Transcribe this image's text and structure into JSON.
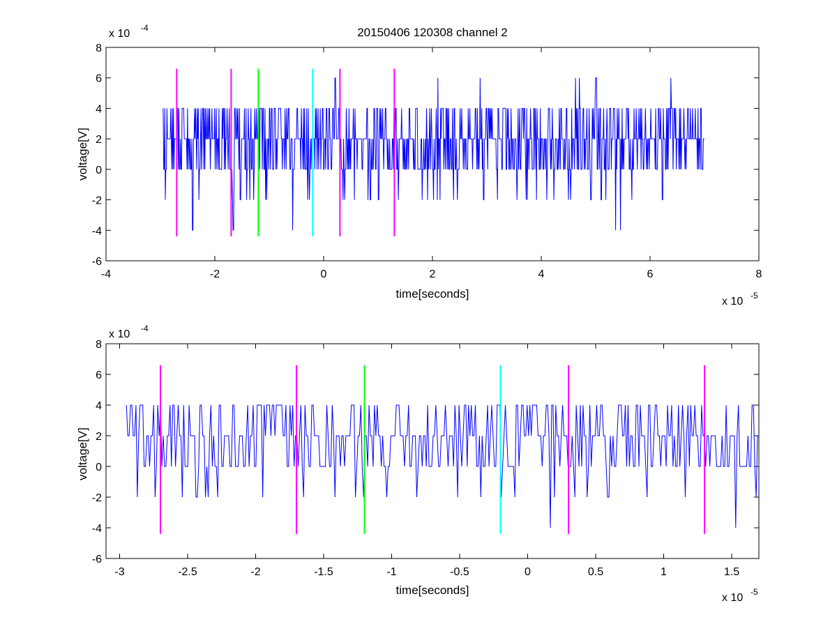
{
  "chart_data": [
    {
      "type": "line",
      "title": "20150406 120308 channel 2",
      "xlabel": "time[seconds]",
      "ylabel": "voltage[V]",
      "x_exponent_label": "x 10",
      "x_exponent": "-5",
      "y_exponent_label": "x 10",
      "y_exponent": "-4",
      "xlim": [
        -4,
        8
      ],
      "ylim": [
        -6,
        8
      ],
      "x_ticks": [
        "-4",
        "-2",
        "0",
        "2",
        "4",
        "6",
        "8"
      ],
      "y_ticks": [
        "-6",
        "-4",
        "-2",
        "0",
        "2",
        "4",
        "6",
        "8"
      ],
      "grid": false,
      "signal": {
        "color": "#0000ff",
        "x_start": -2.95,
        "x_end": 7.0,
        "samples": 1000,
        "levels": [
          -4,
          -2,
          0,
          2,
          4,
          6
        ],
        "baseline": 2
      },
      "markers": [
        {
          "x": -2.7,
          "color": "#ff00ff",
          "y_range": [
            -4.4,
            6.6
          ]
        },
        {
          "x": -1.7,
          "color": "#ff00ff",
          "y_range": [
            -4.4,
            6.6
          ]
        },
        {
          "x": -1.2,
          "color": "#00ff00",
          "y_range": [
            -4.4,
            6.6
          ]
        },
        {
          "x": -0.2,
          "color": "#00ffff",
          "y_range": [
            -4.4,
            6.6
          ]
        },
        {
          "x": 0.3,
          "color": "#ff00ff",
          "y_range": [
            -4.4,
            6.6
          ]
        },
        {
          "x": 1.3,
          "color": "#ff00ff",
          "y_range": [
            -4.4,
            6.6
          ]
        }
      ]
    },
    {
      "type": "line",
      "title": "",
      "xlabel": "time[seconds]",
      "ylabel": "voltage[V]",
      "x_exponent_label": "x 10",
      "x_exponent": "-5",
      "y_exponent_label": "x 10",
      "y_exponent": "-4",
      "xlim": [
        -3.1,
        1.7
      ],
      "ylim": [
        -6,
        8
      ],
      "x_ticks": [
        "-3",
        "-2.5",
        "-2",
        "-1.5",
        "-1",
        "-0.5",
        "0",
        "0.5",
        "1",
        "1.5"
      ],
      "y_ticks": [
        "-6",
        "-4",
        "-2",
        "0",
        "2",
        "4",
        "6",
        "8"
      ],
      "grid": false,
      "signal": {
        "color": "#0000ff",
        "x_start": -2.95,
        "x_end": 1.7,
        "samples": 465,
        "levels": [
          -4,
          -2,
          0,
          2,
          4
        ],
        "baseline": 2
      },
      "markers": [
        {
          "x": -2.7,
          "color": "#ff00ff",
          "y_range": [
            -4.4,
            6.6
          ]
        },
        {
          "x": -1.7,
          "color": "#ff00ff",
          "y_range": [
            -4.4,
            6.6
          ]
        },
        {
          "x": -1.2,
          "color": "#00ff00",
          "y_range": [
            -4.4,
            6.6
          ]
        },
        {
          "x": -0.2,
          "color": "#00ffff",
          "y_range": [
            -4.4,
            6.6
          ]
        },
        {
          "x": 0.3,
          "color": "#ff00ff",
          "y_range": [
            -4.4,
            6.6
          ]
        },
        {
          "x": 1.3,
          "color": "#ff00ff",
          "y_range": [
            -4.4,
            6.6
          ]
        }
      ]
    }
  ]
}
